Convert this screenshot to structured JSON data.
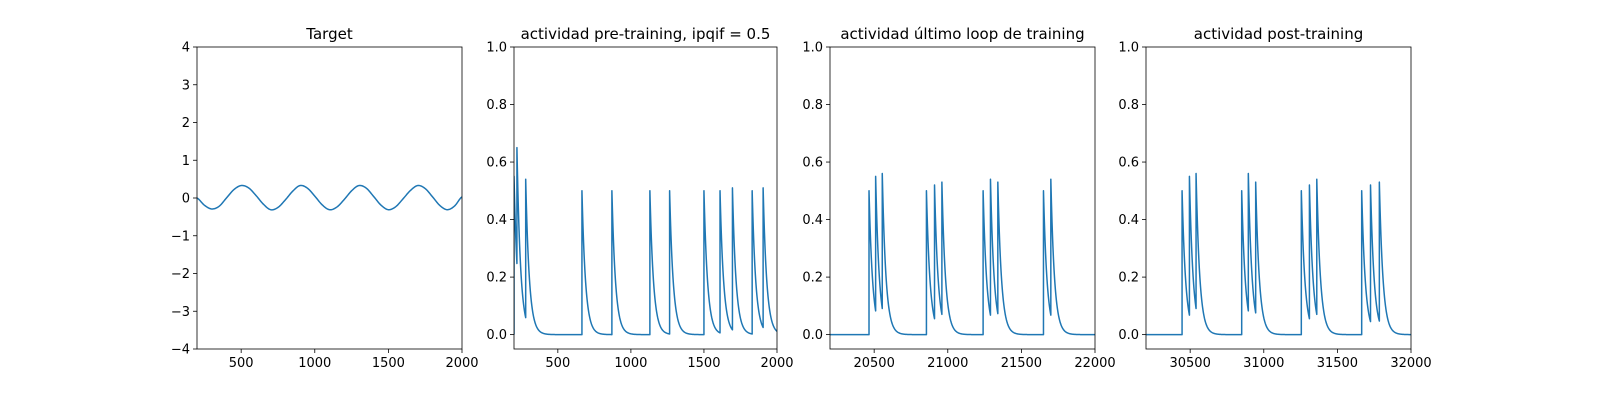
{
  "chart_data": [
    {
      "type": "line",
      "title": "Target",
      "xlim": [
        200,
        2000
      ],
      "ylim": [
        -4,
        4
      ],
      "xticks": [
        500,
        1000,
        1500,
        2000
      ],
      "yticks": [
        -4,
        -3,
        -2,
        -1,
        0,
        1,
        2,
        3,
        4
      ],
      "xticklabels": [
        "500",
        "1000",
        "1500",
        "2000"
      ],
      "yticklabels": [
        "−4",
        "−3",
        "−2",
        "−1",
        "0",
        "1",
        "2",
        "3",
        "4"
      ],
      "grid": false,
      "series": [
        {
          "color": "#1f77b4",
          "x": [
            200,
            250,
            300,
            350,
            400,
            450,
            500,
            550,
            600,
            650,
            700,
            750,
            800,
            850,
            900,
            950,
            1000,
            1050,
            1100,
            1150,
            1200,
            1250,
            1300,
            1350,
            1400,
            1450,
            1500,
            1550,
            1600,
            1650,
            1700,
            1750,
            1800,
            1850,
            1900,
            1950,
            2000
          ],
          "y": [
            0.0,
            -0.19,
            -0.29,
            -0.22,
            0.0,
            0.22,
            0.33,
            0.27,
            0.07,
            -0.16,
            -0.31,
            -0.25,
            -0.05,
            0.18,
            0.33,
            0.26,
            0.05,
            -0.18,
            -0.31,
            -0.24,
            -0.04,
            0.19,
            0.33,
            0.26,
            0.04,
            -0.19,
            -0.31,
            -0.23,
            -0.02,
            0.2,
            0.33,
            0.25,
            0.03,
            -0.2,
            -0.31,
            -0.21,
            0.03
          ]
        }
      ]
    },
    {
      "type": "line",
      "title": "actividad pre-training, ipqif = 0.5",
      "xlim": [
        200,
        2000
      ],
      "ylim": [
        -0.05,
        1.0
      ],
      "xticks": [
        500,
        1000,
        1500,
        2000
      ],
      "yticks": [
        0.0,
        0.2,
        0.4,
        0.6,
        0.8,
        1.0
      ],
      "xticklabels": [
        "500",
        "1000",
        "1500",
        "2000"
      ],
      "yticklabels": [
        "0.0",
        "0.2",
        "0.4",
        "0.6",
        "0.8",
        "1.0"
      ],
      "grid": false,
      "series": [
        {
          "color": "#1f77b4",
          "spikes": [
            {
              "x": 200,
              "peak": 0.55
            },
            {
              "x": 220,
              "peak": 0.65
            },
            {
              "x": 280,
              "peak": 0.54
            },
            {
              "x": 665,
              "peak": 0.5
            },
            {
              "x": 870,
              "peak": 0.5
            },
            {
              "x": 1130,
              "peak": 0.5
            },
            {
              "x": 1265,
              "peak": 0.5
            },
            {
              "x": 1500,
              "peak": 0.5
            },
            {
              "x": 1610,
              "peak": 0.5
            },
            {
              "x": 1695,
              "peak": 0.51
            },
            {
              "x": 1830,
              "peak": 0.5
            },
            {
              "x": 1905,
              "peak": 0.51
            }
          ],
          "baseline": 0.0,
          "decay": 25
        }
      ]
    },
    {
      "type": "line",
      "title": "actividad último loop de training",
      "xlim": [
        20200,
        22000
      ],
      "ylim": [
        -0.05,
        1.0
      ],
      "xticks": [
        20500,
        21000,
        21500,
        22000
      ],
      "yticks": [
        0.0,
        0.2,
        0.4,
        0.6,
        0.8,
        1.0
      ],
      "xticklabels": [
        "20500",
        "21000",
        "21500",
        "22000"
      ],
      "yticklabels": [
        "0.0",
        "0.2",
        "0.4",
        "0.6",
        "0.8",
        "1.0"
      ],
      "grid": false,
      "series": [
        {
          "color": "#1f77b4",
          "spikes": [
            {
              "x": 20465,
              "peak": 0.5
            },
            {
              "x": 20510,
              "peak": 0.55
            },
            {
              "x": 20555,
              "peak": 0.56
            },
            {
              "x": 20855,
              "peak": 0.5
            },
            {
              "x": 20910,
              "peak": 0.52
            },
            {
              "x": 20960,
              "peak": 0.53
            },
            {
              "x": 21240,
              "peak": 0.5
            },
            {
              "x": 21290,
              "peak": 0.54
            },
            {
              "x": 21340,
              "peak": 0.53
            },
            {
              "x": 21650,
              "peak": 0.5
            },
            {
              "x": 21700,
              "peak": 0.54
            }
          ],
          "baseline": 0.0,
          "decay": 25
        }
      ]
    },
    {
      "type": "line",
      "title": "actividad post-training",
      "xlim": [
        30200,
        32000
      ],
      "ylim": [
        -0.05,
        1.0
      ],
      "xticks": [
        30500,
        31000,
        31500,
        32000
      ],
      "yticks": [
        0.0,
        0.2,
        0.4,
        0.6,
        0.8,
        1.0
      ],
      "xticklabels": [
        "30500",
        "31000",
        "31500",
        "32000"
      ],
      "yticklabels": [
        "0.0",
        "0.2",
        "0.4",
        "0.6",
        "0.8",
        "1.0"
      ],
      "grid": false,
      "series": [
        {
          "color": "#1f77b4",
          "spikes": [
            {
              "x": 30445,
              "peak": 0.5
            },
            {
              "x": 30495,
              "peak": 0.55
            },
            {
              "x": 30540,
              "peak": 0.56
            },
            {
              "x": 30850,
              "peak": 0.5
            },
            {
              "x": 30895,
              "peak": 0.56
            },
            {
              "x": 30945,
              "peak": 0.53
            },
            {
              "x": 31255,
              "peak": 0.5
            },
            {
              "x": 31310,
              "peak": 0.52
            },
            {
              "x": 31360,
              "peak": 0.54
            },
            {
              "x": 31665,
              "peak": 0.5
            },
            {
              "x": 31725,
              "peak": 0.52
            },
            {
              "x": 31785,
              "peak": 0.53
            }
          ],
          "baseline": 0.0,
          "decay": 25
        }
      ]
    }
  ]
}
